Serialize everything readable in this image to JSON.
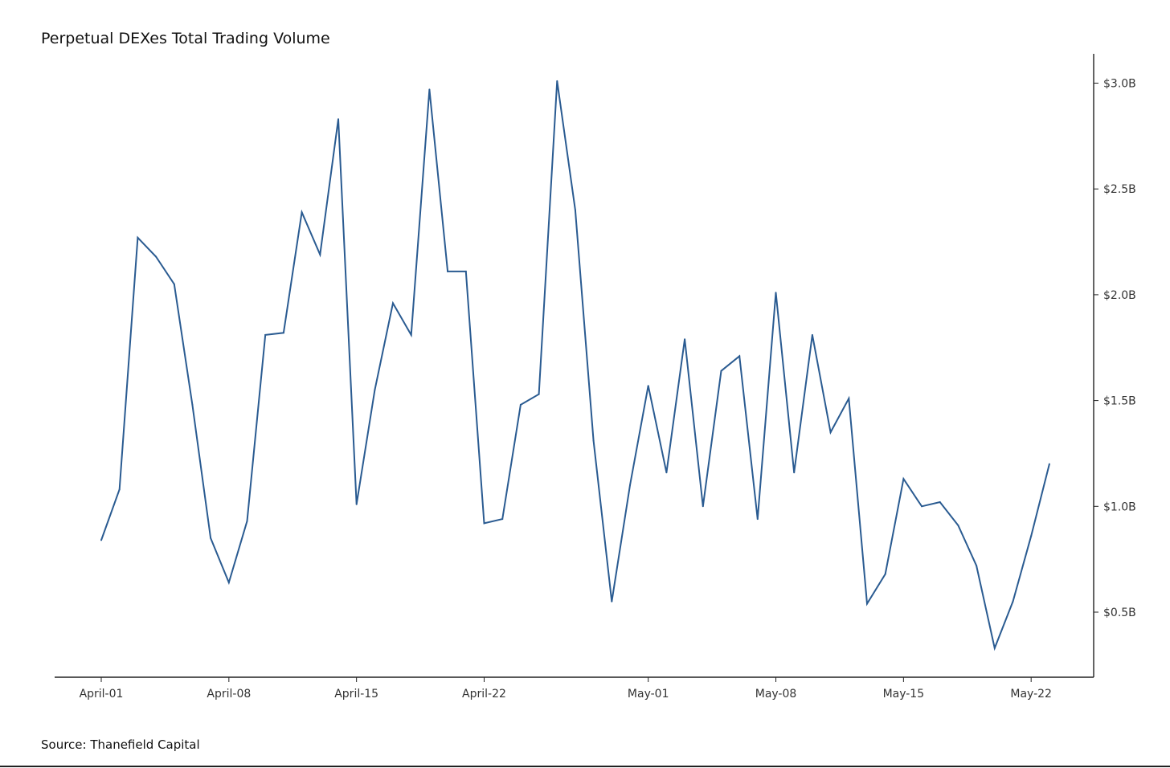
{
  "chart_data": {
    "type": "line",
    "title": "Perpetual DEXes Total Trading Volume",
    "source": "Source: Thanefield Capital",
    "xlabel": "",
    "ylabel": "",
    "y_axis_side": "right",
    "y_unit": "billions USD",
    "ylim": [
      0.2,
      3.15
    ],
    "y_ticks": [
      0.5,
      1.0,
      1.5,
      2.0,
      2.5,
      3.0
    ],
    "y_tick_labels": [
      "$0.5B",
      "$1.0B",
      "$1.5B",
      "$2.0B",
      "$2.5B",
      "$3.0B"
    ],
    "x_start": "2024-04-01",
    "x_ticks": [
      "2024-04-01",
      "2024-04-08",
      "2024-04-15",
      "2024-04-22",
      "2024-05-01",
      "2024-05-08",
      "2024-05-15",
      "2024-05-22"
    ],
    "x_tick_labels": [
      "April-01",
      "April-08",
      "April-15",
      "April-22",
      "May-01",
      "May-08",
      "May-15",
      "May-22"
    ],
    "grid": false,
    "line_color": "#2a5b91",
    "series": [
      {
        "name": "",
        "x": [
          "2024-04-01",
          "2024-04-02",
          "2024-04-03",
          "2024-04-04",
          "2024-04-05",
          "2024-04-06",
          "2024-04-07",
          "2024-04-08",
          "2024-04-09",
          "2024-04-10",
          "2024-04-11",
          "2024-04-12",
          "2024-04-13",
          "2024-04-14",
          "2024-04-15",
          "2024-04-16",
          "2024-04-17",
          "2024-04-18",
          "2024-04-19",
          "2024-04-20",
          "2024-04-21",
          "2024-04-22",
          "2024-04-23",
          "2024-04-24",
          "2024-04-25",
          "2024-04-26",
          "2024-04-27",
          "2024-04-28",
          "2024-04-29",
          "2024-04-30",
          "2024-05-01",
          "2024-05-02",
          "2024-05-03",
          "2024-05-04",
          "2024-05-05",
          "2024-05-06",
          "2024-05-07",
          "2024-05-08",
          "2024-05-09",
          "2024-05-10",
          "2024-05-11",
          "2024-05-12",
          "2024-05-13",
          "2024-05-14",
          "2024-05-15",
          "2024-05-16",
          "2024-05-17",
          "2024-05-18",
          "2024-05-19",
          "2024-05-20",
          "2024-05-21",
          "2024-05-22",
          "2024-05-23"
        ],
        "values": [
          0.84,
          1.08,
          2.27,
          2.18,
          2.05,
          1.48,
          0.85,
          0.64,
          0.93,
          1.81,
          1.82,
          2.39,
          2.19,
          2.83,
          1.01,
          1.55,
          1.96,
          1.81,
          2.97,
          2.11,
          2.11,
          0.92,
          0.94,
          1.48,
          1.53,
          3.01,
          2.4,
          1.31,
          0.55,
          1.1,
          1.57,
          1.16,
          1.79,
          1.0,
          1.64,
          1.71,
          0.94,
          2.01,
          1.16,
          1.81,
          1.35,
          1.51,
          0.54,
          0.68,
          1.13,
          1.0,
          1.02,
          0.91,
          0.72,
          0.33,
          0.55,
          0.86,
          1.2
        ]
      }
    ]
  }
}
